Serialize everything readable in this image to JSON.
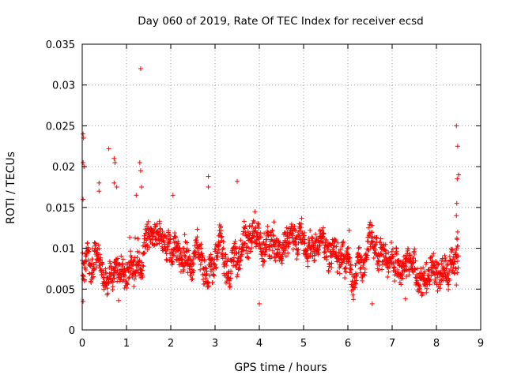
{
  "chart_data": {
    "type": "scatter",
    "title": "Day 060 of 2019, Rate Of TEC Index for receiver ecsd",
    "xlabel": "GPS time / hours",
    "ylabel": "ROTI / TECUs",
    "xlim": [
      0,
      9
    ],
    "ylim": [
      0,
      0.035
    ],
    "xticks": [
      "0",
      "1",
      "2",
      "3",
      "4",
      "5",
      "6",
      "7",
      "8",
      "9"
    ],
    "yticks": [
      "0",
      "0.005",
      "0.01",
      "0.015",
      "0.02",
      "0.025",
      "0.03",
      "0.035"
    ],
    "grid": true,
    "marker": "plus",
    "series": [
      {
        "name": "ROTI",
        "color": "#ff0000",
        "x_range": [
          0,
          8.5
        ],
        "typical_range": [
          0.0045,
          0.0125
        ],
        "highlighted_points": [
          {
            "x": 0.02,
            "y": 0.024
          },
          {
            "x": 0.03,
            "y": 0.0235
          },
          {
            "x": 0.02,
            "y": 0.0205
          },
          {
            "x": 0.04,
            "y": 0.02
          },
          {
            "x": 0.02,
            "y": 0.016
          },
          {
            "x": 0.02,
            "y": 0.0035
          },
          {
            "x": 0.6,
            "y": 0.0222
          },
          {
            "x": 0.72,
            "y": 0.021
          },
          {
            "x": 0.74,
            "y": 0.0205
          },
          {
            "x": 0.72,
            "y": 0.018
          },
          {
            "x": 0.78,
            "y": 0.0175
          },
          {
            "x": 0.38,
            "y": 0.018
          },
          {
            "x": 0.38,
            "y": 0.017
          },
          {
            "x": 1.32,
            "y": 0.032
          },
          {
            "x": 1.3,
            "y": 0.0205
          },
          {
            "x": 1.32,
            "y": 0.0195
          },
          {
            "x": 1.34,
            "y": 0.0175
          },
          {
            "x": 1.22,
            "y": 0.0165
          },
          {
            "x": 2.05,
            "y": 0.0165
          },
          {
            "x": 2.85,
            "y": 0.0188
          },
          {
            "x": 2.85,
            "y": 0.0175
          },
          {
            "x": 3.5,
            "y": 0.0182
          },
          {
            "x": 0.82,
            "y": 0.0036
          },
          {
            "x": 4.0,
            "y": 0.0032
          },
          {
            "x": 6.55,
            "y": 0.0032
          },
          {
            "x": 7.3,
            "y": 0.0038
          },
          {
            "x": 8.45,
            "y": 0.025
          },
          {
            "x": 8.48,
            "y": 0.0225
          },
          {
            "x": 8.5,
            "y": 0.019
          },
          {
            "x": 8.47,
            "y": 0.0185
          },
          {
            "x": 8.46,
            "y": 0.0155
          },
          {
            "x": 8.45,
            "y": 0.014
          },
          {
            "x": 8.48,
            "y": 0.012
          },
          {
            "x": 8.46,
            "y": 0.009
          },
          {
            "x": 8.47,
            "y": 0.007
          },
          {
            "x": 8.45,
            "y": 0.0055
          }
        ]
      }
    ]
  }
}
